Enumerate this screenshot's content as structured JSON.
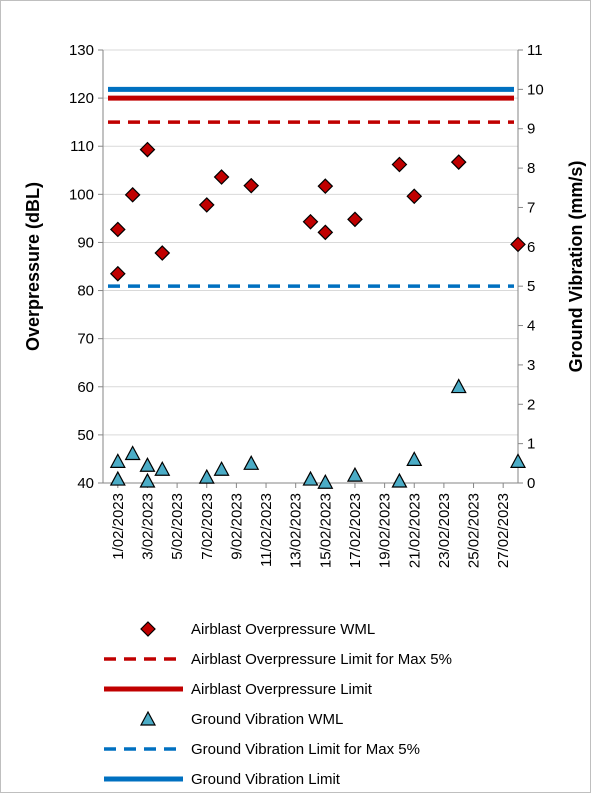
{
  "chart_data": {
    "type": "scatter",
    "title": "",
    "x_axis": {
      "tick_labels": [
        "1/02/2023",
        "3/02/2023",
        "5/02/2023",
        "7/02/2023",
        "9/02/2023",
        "11/02/2023",
        "13/02/2023",
        "15/02/2023",
        "17/02/2023",
        "19/02/2023",
        "21/02/2023",
        "23/02/2023",
        "25/02/2023",
        "27/02/2023"
      ],
      "range": [
        "31/01/2023",
        "28/02/2023"
      ]
    },
    "y_left": {
      "label": "Overpressure (dBL)",
      "min": 40,
      "max": 130,
      "step": 10
    },
    "y_right": {
      "label": "Ground Vibration (mm/s)",
      "min": 0,
      "max": 11,
      "step": 1
    },
    "grid": "horizontal",
    "legend_position": "bottom",
    "colors": {
      "airblast": "#c00000",
      "vibration": "#0070c0",
      "vibration_marker": "#4bacc6"
    },
    "series": [
      {
        "name": "Airblast Overpressure WML",
        "axis": "left",
        "kind": "marker",
        "marker": "diamond",
        "points": [
          {
            "x": "1/02/2023",
            "y": 83.5
          },
          {
            "x": "1/02/2023",
            "y": 92.7
          },
          {
            "x": "2/02/2023",
            "y": 99.9
          },
          {
            "x": "3/02/2023",
            "y": 109.3
          },
          {
            "x": "4/02/2023",
            "y": 87.8
          },
          {
            "x": "7/02/2023",
            "y": 97.8
          },
          {
            "x": "8/02/2023",
            "y": 103.6
          },
          {
            "x": "10/02/2023",
            "y": 101.8
          },
          {
            "x": "14/02/2023",
            "y": 94.3
          },
          {
            "x": "15/02/2023",
            "y": 92.1
          },
          {
            "x": "15/02/2023",
            "y": 101.7
          },
          {
            "x": "17/02/2023",
            "y": 94.8
          },
          {
            "x": "20/02/2023",
            "y": 106.2
          },
          {
            "x": "21/02/2023",
            "y": 99.6
          },
          {
            "x": "24/02/2023",
            "y": 106.7
          },
          {
            "x": "28/02/2023",
            "y": 89.6
          }
        ]
      },
      {
        "name": "Airblast Overpressure Limit for Max 5%",
        "axis": "left",
        "kind": "dashed",
        "value": 115
      },
      {
        "name": "Airblast Overpressure Limit",
        "axis": "left",
        "kind": "solid",
        "value": 120
      },
      {
        "name": "Ground Vibration WML",
        "axis": "right",
        "kind": "marker",
        "marker": "triangle",
        "points": [
          {
            "x": "1/02/2023",
            "y": 0.55
          },
          {
            "x": "1/02/2023",
            "y": 0.1
          },
          {
            "x": "2/02/2023",
            "y": 0.75
          },
          {
            "x": "3/02/2023",
            "y": 0.45
          },
          {
            "x": "3/02/2023",
            "y": 0.05
          },
          {
            "x": "4/02/2023",
            "y": 0.35
          },
          {
            "x": "7/02/2023",
            "y": 0.15
          },
          {
            "x": "8/02/2023",
            "y": 0.35
          },
          {
            "x": "10/02/2023",
            "y": 0.5
          },
          {
            "x": "14/02/2023",
            "y": 0.1
          },
          {
            "x": "15/02/2023",
            "y": 0.02
          },
          {
            "x": "17/02/2023",
            "y": 0.2
          },
          {
            "x": "20/02/2023",
            "y": 0.05
          },
          {
            "x": "21/02/2023",
            "y": 0.6
          },
          {
            "x": "24/02/2023",
            "y": 2.45
          },
          {
            "x": "28/02/2023",
            "y": 0.55
          }
        ]
      },
      {
        "name": "Ground Vibration Limit for Max 5%",
        "axis": "right",
        "kind": "dashed",
        "value": 5
      },
      {
        "name": "Ground Vibration Limit",
        "axis": "right",
        "kind": "solid",
        "value": 10
      }
    ]
  }
}
